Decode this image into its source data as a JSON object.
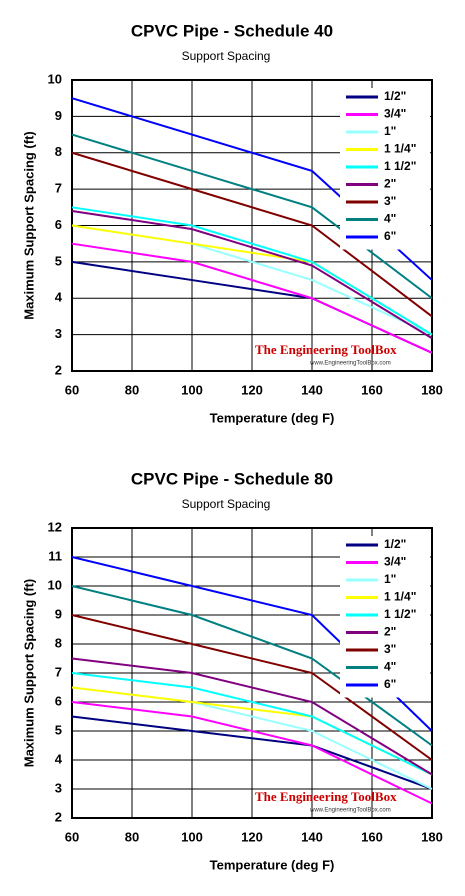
{
  "chart_data": [
    {
      "type": "line",
      "title": "CPVC Pipe - Schedule 40",
      "subtitle": "Support Spacing",
      "x_label": "Temperature (deg F)",
      "y_label": "Maximum  Support Spacing (ft)",
      "annotations": [
        "The Engineering ToolBox",
        "www.EngineeringToolBox.com"
      ],
      "x": [
        60,
        100,
        140,
        180
      ],
      "xlim": [
        60,
        180
      ],
      "xticks": [
        60,
        80,
        100,
        120,
        140,
        160,
        180
      ],
      "ylim": [
        2,
        10
      ],
      "yticks": [
        2,
        3,
        4,
        5,
        6,
        7,
        8,
        9,
        10
      ],
      "grid": true,
      "legend": "upper right",
      "series": [
        {
          "name": "1/2\"",
          "color": "#000080",
          "values": [
            5,
            4.5,
            4,
            2.5
          ]
        },
        {
          "name": "3/4\"",
          "color": "#ff00ff",
          "values": [
            5.5,
            5,
            4,
            2.5
          ]
        },
        {
          "name": "1\"",
          "color": "#99ffff",
          "values": [
            6,
            5.5,
            4.5,
            3
          ]
        },
        {
          "name": "1 1/4\"",
          "color": "#ffff00",
          "values": [
            6,
            5.5,
            5,
            3
          ]
        },
        {
          "name": "1 1/2\"",
          "color": "#00ffff",
          "values": [
            6.5,
            6,
            5,
            3
          ]
        },
        {
          "name": "2\"",
          "color": "#800080",
          "values": [
            6.4,
            5.9,
            4.9,
            2.9
          ]
        },
        {
          "name": "3\"",
          "color": "#800000",
          "values": [
            8,
            7,
            6,
            3.5
          ]
        },
        {
          "name": "4\"",
          "color": "#008080",
          "values": [
            8.5,
            7.5,
            6.5,
            4
          ]
        },
        {
          "name": "6\"",
          "color": "#0000ff",
          "values": [
            9.5,
            8.5,
            7.5,
            4.5
          ]
        }
      ]
    },
    {
      "type": "line",
      "title": "CPVC Pipe - Schedule 80",
      "subtitle": "Support Spacing",
      "x_label": "Temperature (deg F)",
      "y_label": "Maximum  Support Spacing (ft)",
      "annotations": [
        "The Engineering ToolBox",
        "www.EngineeringToolBox.com"
      ],
      "x": [
        60,
        100,
        140,
        180
      ],
      "xlim": [
        60,
        180
      ],
      "xticks": [
        60,
        80,
        100,
        120,
        140,
        160,
        180
      ],
      "ylim": [
        2,
        12
      ],
      "yticks": [
        2,
        3,
        4,
        5,
        6,
        7,
        8,
        9,
        10,
        11,
        12
      ],
      "grid": true,
      "legend": "upper right",
      "series": [
        {
          "name": "1/2\"",
          "color": "#000080",
          "values": [
            5.5,
            5,
            4.5,
            3
          ]
        },
        {
          "name": "3/4\"",
          "color": "#ff00ff",
          "values": [
            6,
            5.5,
            4.5,
            2.5
          ]
        },
        {
          "name": "1\"",
          "color": "#99ffff",
          "values": [
            6.5,
            6,
            5,
            3
          ]
        },
        {
          "name": "1 1/4\"",
          "color": "#ffff00",
          "values": [
            6.5,
            6,
            5.5,
            3.5
          ]
        },
        {
          "name": "1 1/2\"",
          "color": "#00ffff",
          "values": [
            7,
            6.5,
            5.5,
            3.5
          ]
        },
        {
          "name": "2\"",
          "color": "#800080",
          "values": [
            7.5,
            7,
            6,
            3.5
          ]
        },
        {
          "name": "3\"",
          "color": "#800000",
          "values": [
            9,
            8,
            7,
            4
          ]
        },
        {
          "name": "4\"",
          "color": "#008080",
          "values": [
            10,
            9,
            7.5,
            4.5
          ]
        },
        {
          "name": "6\"",
          "color": "#0000ff",
          "values": [
            11,
            10,
            9,
            5
          ]
        }
      ]
    }
  ]
}
